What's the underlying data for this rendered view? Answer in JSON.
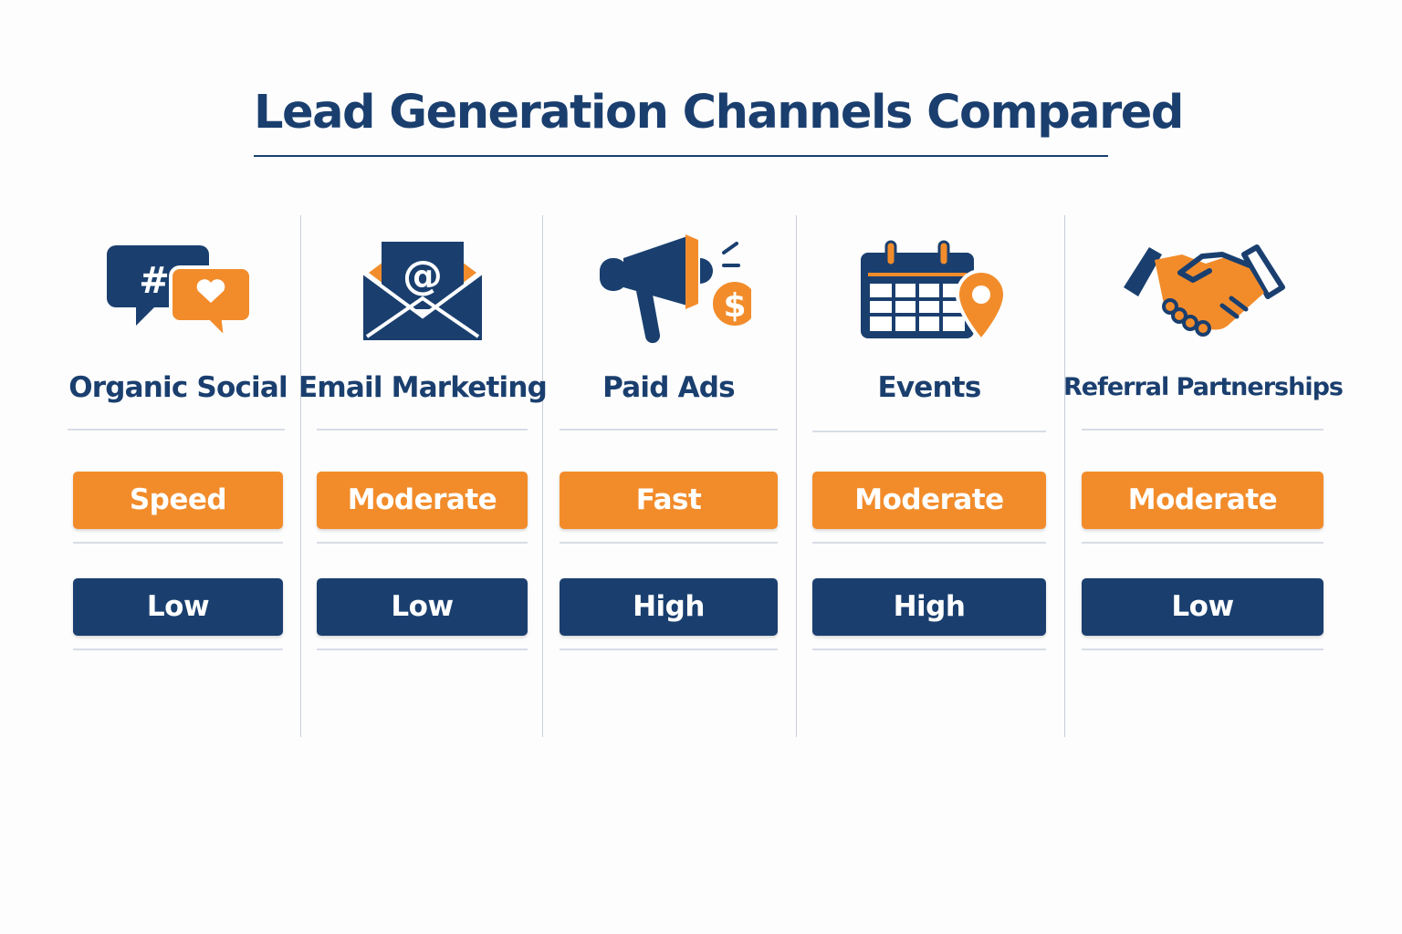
{
  "title": "Lead Generation Channels Compared",
  "colors": {
    "navy": "#1a3f6f",
    "orange": "#f28c2b",
    "divider": "#c9cfd8"
  },
  "channels": [
    {
      "name": "Organic Social",
      "icon": "speech-bubbles-hashtag-heart-icon",
      "speed": "Speed",
      "cost": "Low"
    },
    {
      "name": "Email Marketing",
      "icon": "envelope-at-sign-icon",
      "speed": "Moderate",
      "cost": "Low"
    },
    {
      "name": "Paid Ads",
      "icon": "megaphone-dollar-icon",
      "speed": "Fast",
      "cost": "High"
    },
    {
      "name": "Events",
      "icon": "calendar-location-pin-icon",
      "speed": "Moderate",
      "cost": "High"
    },
    {
      "name": "Referral Partnerships",
      "icon": "handshake-icon",
      "speed": "Moderate",
      "cost": "Low"
    }
  ]
}
